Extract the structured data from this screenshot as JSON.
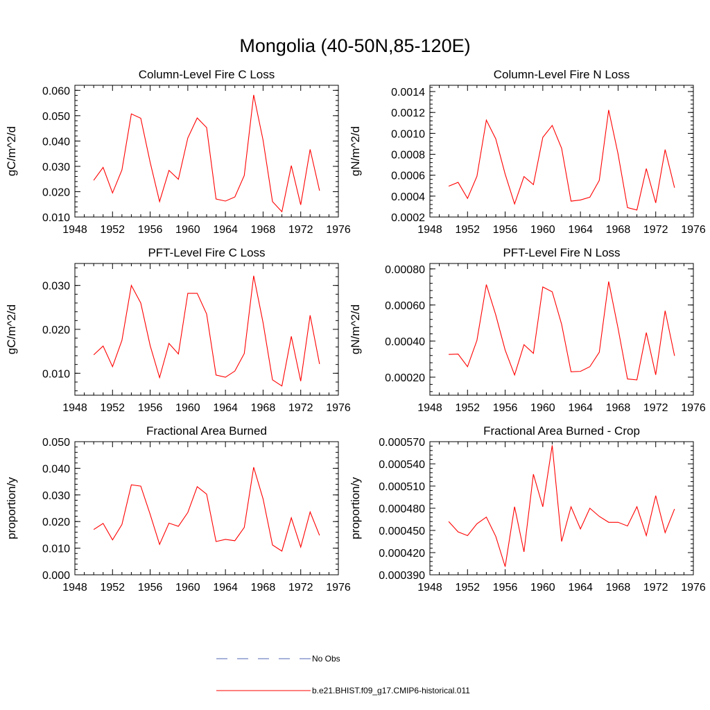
{
  "figure_title": "Mongolia (40-50N,85-120E)",
  "legend": [
    {
      "label": "No Obs",
      "color": "#4f64b4",
      "style": "dashed"
    },
    {
      "label": "b.e21.BHIST.f09_g17.CMIP6-historical.011",
      "color": "#ff0000",
      "style": "solid"
    }
  ],
  "chart_data": [
    {
      "type": "line",
      "title": "Column-Level Fire C Loss",
      "ylabel": "gC/m^2/d",
      "xlim": [
        1948,
        1976
      ],
      "xticks": [
        1948,
        1952,
        1956,
        1960,
        1964,
        1968,
        1972,
        1976
      ],
      "ylim": [
        0.01,
        0.062
      ],
      "yticks": [
        0.01,
        0.02,
        0.03,
        0.04,
        0.05,
        0.06
      ],
      "ytick_labels": [
        "0.010",
        "0.020",
        "0.030",
        "0.040",
        "0.050",
        "0.060"
      ],
      "series": [
        {
          "name": "b.e21.BHIST.f09_g17.CMIP6-historical.011",
          "color": "#ff0000",
          "x": [
            1950,
            1951,
            1952,
            1953,
            1954,
            1955,
            1956,
            1957,
            1958,
            1959,
            1960,
            1961,
            1962,
            1963,
            1964,
            1965,
            1966,
            1967,
            1968,
            1969,
            1970,
            1971,
            1972,
            1973,
            1974
          ],
          "y": [
            0.0245,
            0.0296,
            0.0195,
            0.0286,
            0.0507,
            0.049,
            0.0316,
            0.0161,
            0.0284,
            0.0249,
            0.0412,
            0.0491,
            0.0453,
            0.0171,
            0.0163,
            0.0179,
            0.0264,
            0.0582,
            0.0403,
            0.0161,
            0.0121,
            0.0303,
            0.0148,
            0.0367,
            0.0204
          ]
        }
      ]
    },
    {
      "type": "line",
      "title": "Column-Level Fire N Loss",
      "ylabel": "gN/m^2/d",
      "xlim": [
        1948,
        1976
      ],
      "xticks": [
        1948,
        1952,
        1956,
        1960,
        1964,
        1968,
        1972,
        1976
      ],
      "ylim": [
        0.0002,
        0.00146
      ],
      "yticks": [
        0.0002,
        0.0004,
        0.0006,
        0.0008,
        0.001,
        0.0012,
        0.0014
      ],
      "ytick_labels": [
        "0.0002",
        "0.0004",
        "0.0006",
        "0.0008",
        "0.0010",
        "0.0012",
        "0.0014"
      ],
      "series": [
        {
          "name": "b.e21.BHIST.f09_g17.CMIP6-historical.011",
          "color": "#ff0000",
          "x": [
            1950,
            1951,
            1952,
            1953,
            1954,
            1955,
            1956,
            1957,
            1958,
            1959,
            1960,
            1961,
            1962,
            1963,
            1964,
            1965,
            1966,
            1967,
            1968,
            1969,
            1970,
            1971,
            1972,
            1973,
            1974
          ],
          "y": [
            0.000495,
            0.000532,
            0.000378,
            0.00059,
            0.001127,
            0.000948,
            0.00061,
            0.000325,
            0.000587,
            0.00051,
            0.000962,
            0.001076,
            0.000857,
            0.000352,
            0.000363,
            0.00039,
            0.00055,
            0.001224,
            0.000802,
            0.00029,
            0.000267,
            0.000663,
            0.000335,
            0.000845,
            0.00048
          ]
        }
      ]
    },
    {
      "type": "line",
      "title": "PFT-Level Fire C Loss",
      "ylabel": "gC/m^2/d",
      "xlim": [
        1948,
        1976
      ],
      "xticks": [
        1948,
        1952,
        1956,
        1960,
        1964,
        1968,
        1972,
        1976
      ],
      "ylim": [
        0.005,
        0.035
      ],
      "yticks": [
        0.01,
        0.02,
        0.03
      ],
      "ytick_labels": [
        "0.010",
        "0.020",
        "0.030"
      ],
      "series": [
        {
          "name": "b.e21.BHIST.f09_g17.CMIP6-historical.011",
          "color": "#ff0000",
          "x": [
            1950,
            1951,
            1952,
            1953,
            1954,
            1955,
            1956,
            1957,
            1958,
            1959,
            1960,
            1961,
            1962,
            1963,
            1964,
            1965,
            1966,
            1967,
            1968,
            1969,
            1970,
            1971,
            1972,
            1973,
            1974
          ],
          "y": [
            0.0142,
            0.0162,
            0.0115,
            0.0175,
            0.03,
            0.026,
            0.0163,
            0.009,
            0.0168,
            0.0144,
            0.0282,
            0.0282,
            0.0235,
            0.0096,
            0.0091,
            0.0105,
            0.0145,
            0.0322,
            0.0215,
            0.0085,
            0.0071,
            0.0184,
            0.0082,
            0.0232,
            0.0121
          ]
        }
      ]
    },
    {
      "type": "line",
      "title": "PFT-Level Fire N Loss",
      "ylabel": "gN/m^2/d",
      "xlim": [
        1948,
        1976
      ],
      "xticks": [
        1948,
        1952,
        1956,
        1960,
        1964,
        1968,
        1972,
        1976
      ],
      "ylim": [
        0.0001,
        0.00083
      ],
      "yticks": [
        0.0002,
        0.0004,
        0.0006,
        0.0008
      ],
      "ytick_labels": [
        "0.00020",
        "0.00040",
        "0.00060",
        "0.00080"
      ],
      "series": [
        {
          "name": "b.e21.BHIST.f09_g17.CMIP6-historical.011",
          "color": "#ff0000",
          "x": [
            1950,
            1951,
            1952,
            1953,
            1954,
            1955,
            1956,
            1957,
            1958,
            1959,
            1960,
            1961,
            1962,
            1963,
            1964,
            1965,
            1966,
            1967,
            1968,
            1969,
            1970,
            1971,
            1972,
            1973,
            1974
          ],
          "y": [
            0.000326,
            0.000328,
            0.000258,
            0.000404,
            0.000713,
            0.000545,
            0.00035,
            0.000212,
            0.00038,
            0.000332,
            0.0007,
            0.000673,
            0.000493,
            0.00023,
            0.000232,
            0.000258,
            0.000338,
            0.00073,
            0.00047,
            0.00019,
            0.000185,
            0.000447,
            0.000213,
            0.000568,
            0.000318
          ]
        }
      ]
    },
    {
      "type": "line",
      "title": "Fractional Area Burned",
      "ylabel": "proportion/y",
      "xlim": [
        1948,
        1976
      ],
      "xticks": [
        1948,
        1952,
        1956,
        1960,
        1964,
        1968,
        1972,
        1976
      ],
      "ylim": [
        0.0,
        0.05
      ],
      "yticks": [
        0.0,
        0.01,
        0.02,
        0.03,
        0.04,
        0.05
      ],
      "ytick_labels": [
        "0.000",
        "0.010",
        "0.020",
        "0.030",
        "0.040",
        "0.050"
      ],
      "series": [
        {
          "name": "b.e21.BHIST.f09_g17.CMIP6-historical.011",
          "color": "#ff0000",
          "x": [
            1950,
            1951,
            1952,
            1953,
            1954,
            1955,
            1956,
            1957,
            1958,
            1959,
            1960,
            1961,
            1962,
            1963,
            1964,
            1965,
            1966,
            1967,
            1968,
            1969,
            1970,
            1971,
            1972,
            1973,
            1974
          ],
          "y": [
            0.017,
            0.0193,
            0.0131,
            0.0189,
            0.0338,
            0.0333,
            0.0227,
            0.0114,
            0.0194,
            0.0182,
            0.0234,
            0.0331,
            0.0303,
            0.0125,
            0.0133,
            0.0128,
            0.0178,
            0.0404,
            0.0285,
            0.0112,
            0.0089,
            0.0214,
            0.0104,
            0.0236,
            0.0148
          ]
        }
      ]
    },
    {
      "type": "line",
      "title": "Fractional Area Burned - Crop",
      "ylabel": "proportion/y",
      "xlim": [
        1948,
        1976
      ],
      "xticks": [
        1948,
        1952,
        1956,
        1960,
        1964,
        1968,
        1972,
        1976
      ],
      "ylim": [
        0.00039,
        0.00057
      ],
      "yticks": [
        0.00039,
        0.00042,
        0.00045,
        0.00048,
        0.00051,
        0.00054,
        0.00057
      ],
      "ytick_labels": [
        "0.000390",
        "0.000420",
        "0.000450",
        "0.000480",
        "0.000510",
        "0.000540",
        "0.000570"
      ],
      "series": [
        {
          "name": "b.e21.BHIST.f09_g17.CMIP6-historical.011",
          "color": "#ff0000",
          "x": [
            1950,
            1951,
            1952,
            1953,
            1954,
            1955,
            1956,
            1957,
            1958,
            1959,
            1960,
            1961,
            1962,
            1963,
            1964,
            1965,
            1966,
            1967,
            1968,
            1969,
            1970,
            1971,
            1972,
            1973,
            1974
          ],
          "y": [
            0.000462,
            0.000448,
            0.000443,
            0.000459,
            0.000468,
            0.000442,
            0.000401,
            0.000482,
            0.000421,
            0.000526,
            0.000482,
            0.000565,
            0.000435,
            0.000482,
            0.000452,
            0.00048,
            0.000469,
            0.000461,
            0.000461,
            0.000456,
            0.000482,
            0.000443,
            0.000497,
            0.000447,
            0.000479
          ]
        }
      ]
    }
  ]
}
